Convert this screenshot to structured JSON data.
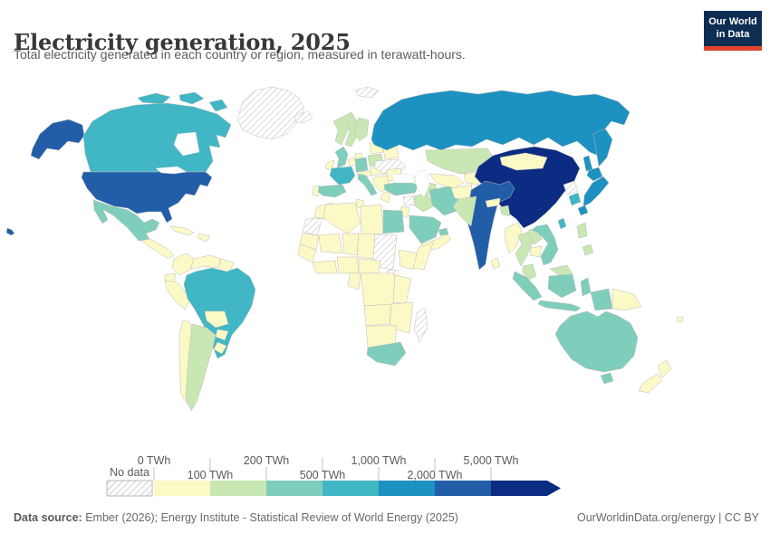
{
  "header": {
    "title": "Electricity generation, 2025",
    "subtitle": "Total electricity generated in each country or region, measured in terawatt-hours.",
    "logo": {
      "line1": "Our World",
      "line2": "in Data",
      "bg": "#0d2d53",
      "accent": "#e0432e"
    }
  },
  "legend": {
    "no_data_label": "No data",
    "unit": "TWh",
    "tick_labels": [
      "0 TWh",
      "100 TWh",
      "200 TWh",
      "500 TWh",
      "1,000 TWh",
      "2,000 TWh",
      "5,000 TWh"
    ]
  },
  "footer": {
    "source_label": "Data source:",
    "source_text": " Ember (2026); Energy Institute - Statistical Review of World Energy (2025)",
    "right_text": "OurWorldinData.org/energy | CC BY"
  },
  "chart_data": {
    "type": "choropleth_map",
    "title": "Electricity generation, 2025",
    "unit": "TWh",
    "bin_edges": [
      0,
      100,
      200,
      500,
      1000,
      2000,
      5000
    ],
    "bin_colors": [
      "#fbf9c6",
      "#c9e7b2",
      "#7fcdbb",
      "#41b6c4",
      "#1d91c0",
      "#225ea8",
      "#0c2c84"
    ],
    "no_data_color": "hatched",
    "legend_position": "bottom",
    "countries": {
      "China": 6,
      "United States": 5,
      "India": 5,
      "Russia": 4,
      "Japan": 4,
      "Canada": 3,
      "Brazil": 3,
      "France": 3,
      "South Korea": 3,
      "Taiwan": 3,
      "Mexico": 2,
      "Germany": 2,
      "United Kingdom": 2,
      "Spain": 2,
      "Italy": 2,
      "Turkey": 2,
      "Iran": 2,
      "Saudi Arabia": 2,
      "United Arab Emirates": 2,
      "Egypt": 2,
      "South Africa": 2,
      "Australia": 2,
      "Vietnam": 2,
      "Indonesia": 2,
      "Argentina": 1,
      "Norway": 1,
      "Sweden": 1,
      "Finland": 1,
      "Poland": 1,
      "Kazakhstan": 1,
      "Pakistan": 1,
      "Iraq": 1,
      "Thailand": 1,
      "Laos": 1,
      "Malaysia": 1,
      "Philippines": 1,
      "Bangladesh": 1,
      "Turkmenistan": 1,
      "Guatemala": 0,
      "Cuba": 0,
      "Haiti": 0,
      "Colombia": 0,
      "Venezuela": 0,
      "Guyana": 0,
      "Ecuador": 0,
      "Peru": 0,
      "Bolivia": 0,
      "Paraguay": 0,
      "Chile": 0,
      "Uruguay": 0,
      "Ireland": 0,
      "Portugal": 0,
      "Denmark": 0,
      "Netherlands": 0,
      "Austria": 0,
      "Hungary": 0,
      "Serbia": 0,
      "Romania": 0,
      "Greece": 0,
      "Lithuania": 0,
      "Belarus": 0,
      "Uzbekistan": 0,
      "Kyrgyzstan": 0,
      "Georgia": 0,
      "Jordan": 0,
      "Oman": 0,
      "Morocco": 0,
      "Algeria": 0,
      "Tunisia": 0,
      "Libya": 0,
      "Mauritania": 0,
      "Mali": 0,
      "Niger": 0,
      "Chad": 0,
      "Ethiopia": 0,
      "Somalia": 0,
      "Senegal": 0,
      "Ghana": 0,
      "Nigeria": 0,
      "Cameroon": 0,
      "Democratic Republic of Congo": 0,
      "Gabon": 0,
      "Kenya": 0,
      "Angola": 0,
      "Zambia": 0,
      "Namibia": 0,
      "Afghanistan": 0,
      "Nepal": 0,
      "Sri Lanka": 0,
      "Mongolia": 0,
      "Myanmar": 0,
      "Cambodia": 0,
      "Papua New Guinea": 0,
      "New Zealand": 0,
      "Fiji": 0
    },
    "no_data": [
      "Greenland",
      "Iceland",
      "Svalbard",
      "Ukraine",
      "Syria",
      "North Korea",
      "Sudan",
      "South Sudan",
      "Western Sahara",
      "Madagascar"
    ]
  }
}
